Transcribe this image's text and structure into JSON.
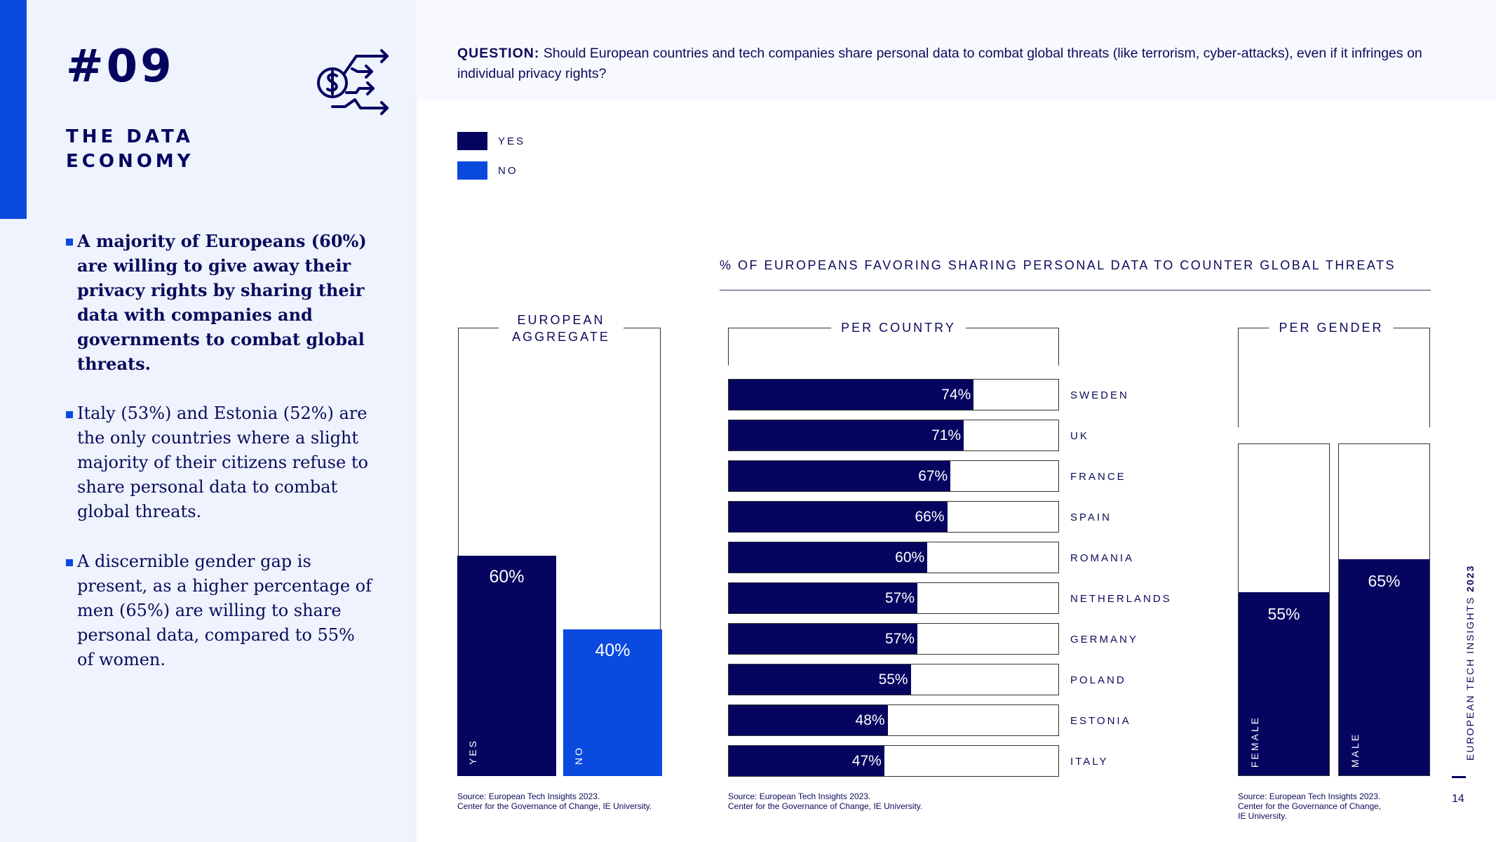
{
  "sidebar": {
    "section_number": "#09",
    "section_title_lines": [
      "THE DATA",
      "ECONOMY"
    ],
    "icon": "money-data-flow-icon",
    "bullets": [
      "A majority of Europeans (60%) are willing to give away their privacy rights by sharing their data with companies and governments to combat global threats.",
      "Italy (53%) and Estonia (52%) are the only countries where a slight majority of their citizens refuse to share personal data to combat global threats.",
      "A discernible gender gap is present, as a higher percentage of men (65%) are willing to share personal data, compared to 55% of women."
    ]
  },
  "question": {
    "label": "QUESTION:",
    "text": "Should European countries and tech companies share personal data to combat global threats (like terrorism, cyber-attacks), even if it infringes on individual privacy rights?"
  },
  "legend": [
    {
      "label": "YES",
      "color": "#050560"
    },
    {
      "label": "NO",
      "color": "#0a4adf"
    }
  ],
  "chart_data": [
    {
      "type": "bar",
      "title": "EUROPEAN AGGREGATE",
      "categories": [
        "YES",
        "NO"
      ],
      "values": [
        60,
        40
      ],
      "value_labels": [
        "60%",
        "40%"
      ],
      "colors": [
        "#050560",
        "#0a4adf"
      ],
      "ylim": [
        0,
        100
      ]
    },
    {
      "type": "bar",
      "orientation": "horizontal",
      "main_title": "% OF EUROPEANS FAVORING SHARING PERSONAL DATA TO COUNTER GLOBAL THREATS",
      "title": "PER COUNTRY",
      "categories": [
        "SWEDEN",
        "UK",
        "FRANCE",
        "SPAIN",
        "ROMANIA",
        "NETHERLANDS",
        "GERMANY",
        "POLAND",
        "ESTONIA",
        "ITALY"
      ],
      "values": [
        74,
        71,
        67,
        66,
        60,
        57,
        57,
        55,
        48,
        47
      ],
      "value_labels": [
        "74%",
        "71%",
        "67%",
        "66%",
        "60%",
        "57%",
        "57%",
        "55%",
        "48%",
        "47%"
      ],
      "xlim": [
        0,
        100
      ]
    },
    {
      "type": "bar",
      "title": "PER GENDER",
      "categories": [
        "FEMALE",
        "MALE"
      ],
      "values": [
        55,
        65
      ],
      "value_labels": [
        "55%",
        "65%"
      ],
      "ylim": [
        0,
        100
      ]
    }
  ],
  "sources": {
    "aggregate": [
      "Source: European Tech Insights 2023.",
      "Center for the Governance of Change, IE University."
    ],
    "country": [
      "Source: European Tech Insights 2023.",
      "Center for the Governance of Change, IE University."
    ],
    "gender": [
      "Source: European Tech Insights 2023.",
      "Center for the Governance of Change,",
      "IE University."
    ]
  },
  "footer": {
    "brand": "EUROPEAN TECH INSIGHTS",
    "year": "2023",
    "page_number": "14"
  }
}
